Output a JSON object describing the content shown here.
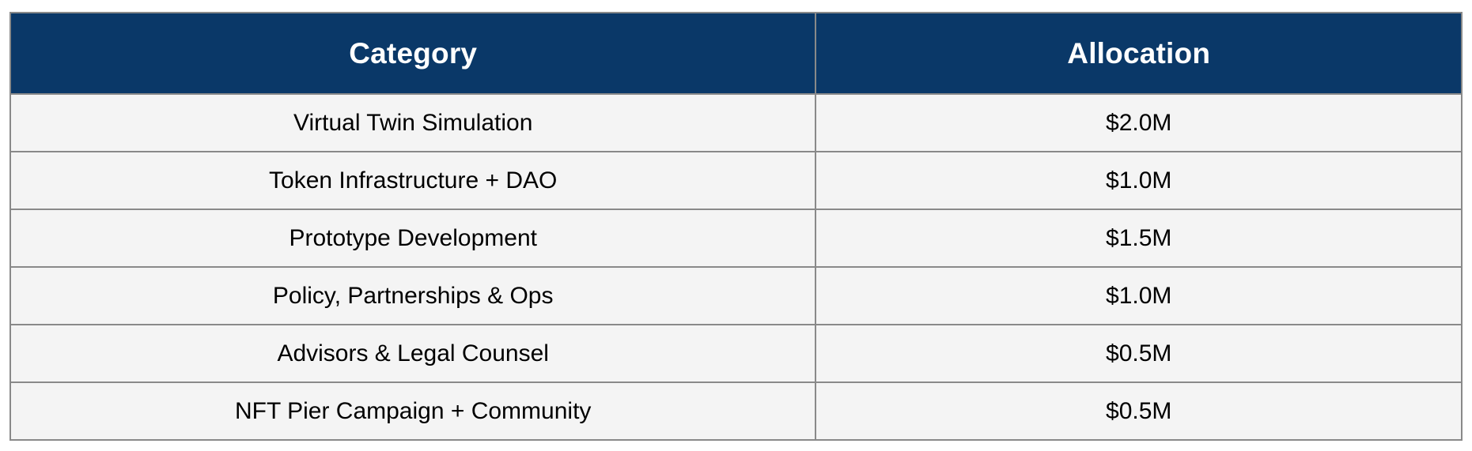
{
  "table": {
    "columns": {
      "category_header": "Category",
      "allocation_header": "Allocation"
    },
    "rows": [
      {
        "category": "Virtual Twin Simulation",
        "allocation": "$2.0M"
      },
      {
        "category": "Token Infrastructure + DAO",
        "allocation": "$1.0M"
      },
      {
        "category": "Prototype Development",
        "allocation": "$1.5M"
      },
      {
        "category": "Policy, Partnerships & Ops",
        "allocation": "$1.0M"
      },
      {
        "category": "Advisors & Legal Counsel",
        "allocation": "$0.5M"
      },
      {
        "category": "NFT Pier Campaign + Community",
        "allocation": "$0.5M"
      }
    ],
    "colors": {
      "header_background": "#0A3868",
      "header_text": "#FFFFFF",
      "row_background": "#F4F4F4",
      "row_text": "#000000",
      "border": "#898989"
    }
  },
  "chart_data": {
    "type": "table",
    "title": "",
    "columns": [
      "Category",
      "Allocation"
    ],
    "categories": [
      "Virtual Twin Simulation",
      "Token Infrastructure + DAO",
      "Prototype Development",
      "Policy, Partnerships & Ops",
      "Advisors & Legal Counsel",
      "NFT Pier Campaign + Community"
    ],
    "values_millions_usd": [
      2.0,
      1.0,
      1.5,
      1.0,
      0.5,
      0.5
    ],
    "value_labels": [
      "$2.0M",
      "$1.0M",
      "$1.5M",
      "$1.0M",
      "$0.5M",
      "$0.5M"
    ]
  }
}
